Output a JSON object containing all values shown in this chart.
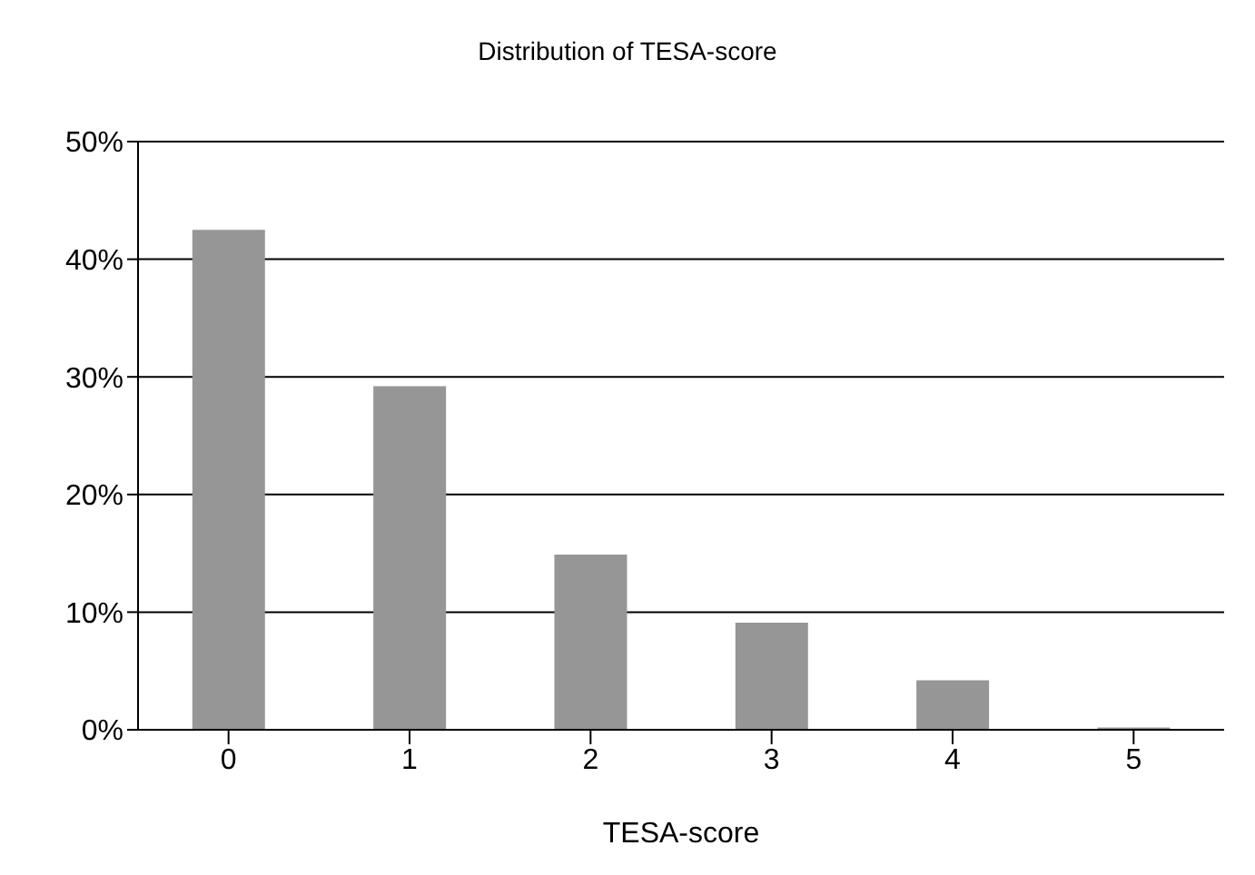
{
  "chart_data": {
    "type": "bar",
    "title": "Distribution of TESA-score",
    "xlabel": "TESA-score",
    "categories": [
      "0",
      "1",
      "2",
      "3",
      "4",
      "5"
    ],
    "values": [
      42.5,
      29.2,
      14.9,
      9.1,
      4.2,
      0.2
    ],
    "color": "#969696",
    "ylim": [
      0,
      50
    ],
    "yticks": [
      {
        "value": 0,
        "label": "0%"
      },
      {
        "value": 10,
        "label": "10%"
      },
      {
        "value": 20,
        "label": "20%"
      },
      {
        "value": 30,
        "label": "30%"
      },
      {
        "value": 40,
        "label": "40%"
      },
      {
        "value": 50,
        "label": "50%"
      }
    ],
    "grid": "y"
  }
}
